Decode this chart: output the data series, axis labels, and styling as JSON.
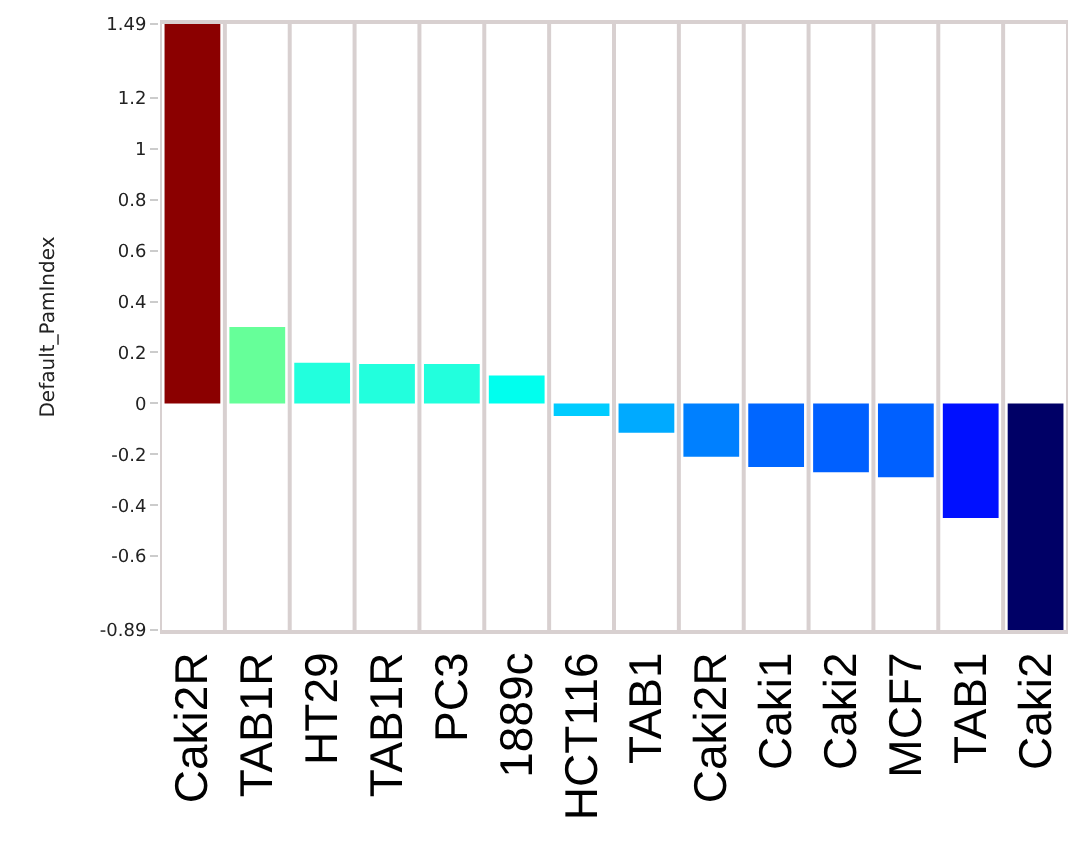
{
  "chart_data": {
    "type": "bar",
    "ylabel": "Default_PamIndex",
    "categories": [
      "Caki2R",
      "TAB1R",
      "HT29",
      "TAB1R",
      "PC3",
      "1889c",
      "HCT116",
      "TAB1",
      "Caki2R",
      "Caki1",
      "Caki2",
      "MCF7",
      "TAB1",
      "Caki2"
    ],
    "values": [
      1.49,
      0.3,
      0.16,
      0.155,
      0.155,
      0.11,
      -0.05,
      -0.115,
      -0.21,
      -0.25,
      -0.27,
      -0.29,
      -0.45,
      -0.89
    ],
    "colors": [
      "#8b0000",
      "#66ff99",
      "#22ffdd",
      "#22ffdd",
      "#22ffdd",
      "#00ffee",
      "#00ccff",
      "#00aaff",
      "#0080ff",
      "#0066ff",
      "#0060ff",
      "#0060ff",
      "#0010ff",
      "#000066"
    ],
    "ylim": [
      -0.89,
      1.49
    ],
    "yticks": [
      -0.89,
      -0.6,
      -0.4,
      -0.2,
      0,
      0.2,
      0.4,
      0.6,
      0.8,
      1,
      1.2,
      1.49
    ],
    "grid": "x"
  }
}
